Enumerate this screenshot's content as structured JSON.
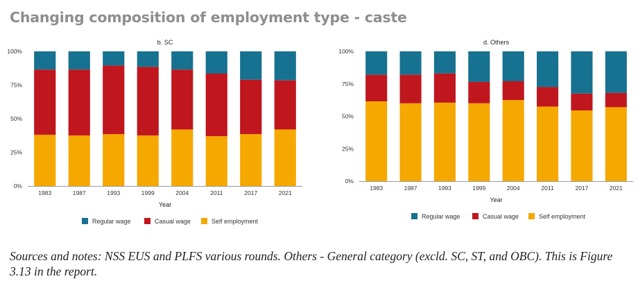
{
  "title": "Changing composition of employment type - caste",
  "notes": "Sources and notes: NSS EUS and PLFS various rounds. Others - General category (excld. SC, ST, and OBC). This is Figure 3.13 in the report.",
  "colors": {
    "regular": "#177190",
    "casual": "#c0161e",
    "self": "#f5a800"
  },
  "chart_data": [
    {
      "type": "bar",
      "stacked": true,
      "title": "b. SC",
      "xlabel": "Year",
      "ylabel": "",
      "categories": [
        "1983",
        "1987",
        "1993",
        "1999",
        "2004",
        "2011",
        "2017",
        "2021"
      ],
      "yticks": [
        "0%",
        "25%",
        "50%",
        "75%",
        "100%"
      ],
      "ylim": [
        0,
        100
      ],
      "series": [
        {
          "name": "Self employment",
          "key": "self",
          "values": [
            38,
            37.5,
            38.5,
            37.5,
            42,
            37,
            38.5,
            42
          ]
        },
        {
          "name": "Casual wage",
          "key": "casual",
          "values": [
            48.5,
            49,
            51,
            51,
            44.5,
            46.5,
            40.5,
            36.5
          ]
        },
        {
          "name": "Regular wage",
          "key": "regular",
          "values": [
            13.5,
            13.5,
            10.5,
            11.5,
            13.5,
            16.5,
            21,
            21.5
          ]
        }
      ],
      "legend": "bottom"
    },
    {
      "type": "bar",
      "stacked": true,
      "title": "d. Others",
      "xlabel": "Year",
      "ylabel": "",
      "categories": [
        "1983",
        "1987",
        "1993",
        "1999",
        "2004",
        "2011",
        "2017",
        "2021"
      ],
      "yticks": [
        "0%",
        "25%",
        "50%",
        "75%",
        "100%"
      ],
      "ylim": [
        0,
        100
      ],
      "series": [
        {
          "name": "Self employment",
          "key": "self",
          "values": [
            61.5,
            60,
            60.5,
            60,
            62.5,
            57.5,
            54.5,
            57
          ]
        },
        {
          "name": "Casual wage",
          "key": "casual",
          "values": [
            20.5,
            22,
            22.5,
            16.5,
            14.5,
            15,
            13,
            11
          ]
        },
        {
          "name": "Regular wage",
          "key": "regular",
          "values": [
            18,
            18,
            17,
            23.5,
            23,
            27.5,
            32.5,
            32
          ]
        }
      ],
      "legend": "bottom"
    }
  ],
  "legend": [
    {
      "label": "Regular wage",
      "key": "regular"
    },
    {
      "label": "Casual wage",
      "key": "casual"
    },
    {
      "label": "Self employment",
      "key": "self"
    }
  ]
}
